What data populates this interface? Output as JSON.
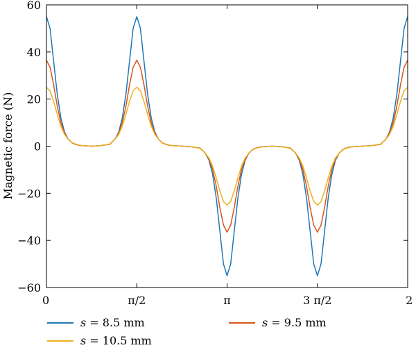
{
  "chart_data": {
    "type": "line",
    "xlabel": "",
    "ylabel": "Magnetic force (N)",
    "xlim": [
      0,
      6.2832
    ],
    "ylim": [
      -60,
      60
    ],
    "grid": false,
    "legend_position": "bottom",
    "x_ticks": [
      {
        "value": 0,
        "label": "0"
      },
      {
        "value": 1.5708,
        "label": "π/2"
      },
      {
        "value": 3.1416,
        "label": "π"
      },
      {
        "value": 4.7124,
        "label": "3 π/2"
      },
      {
        "value": 6.2832,
        "label": "2 π"
      }
    ],
    "y_ticks": [
      {
        "value": 60,
        "label": "60"
      },
      {
        "value": 40,
        "label": "40"
      },
      {
        "value": 20,
        "label": "20"
      },
      {
        "value": 0,
        "label": "0"
      },
      {
        "value": -20,
        "label": "−20"
      },
      {
        "value": -40,
        "label": "−40"
      },
      {
        "value": -60,
        "label": "−60"
      }
    ],
    "x": [
      0,
      0.0628,
      0.1257,
      0.1885,
      0.2513,
      0.3142,
      0.377,
      0.4398,
      0.5027,
      0.5655,
      0.6283,
      0.7854,
      0.9425,
      1.0996,
      1.1938,
      1.2566,
      1.3195,
      1.3823,
      1.4451,
      1.508,
      1.5708,
      1.6336,
      1.6965,
      1.7593,
      1.8221,
      1.885,
      1.9478,
      2.0106,
      2.0735,
      2.1363,
      2.1991,
      2.3562,
      2.5133,
      2.6704,
      2.7646,
      2.8274,
      2.8903,
      2.9531,
      3.0159,
      3.0788,
      3.1416,
      3.2044,
      3.2673,
      3.3301,
      3.3929,
      3.4558,
      3.5186,
      3.5814,
      3.6443,
      3.7071,
      3.7699,
      3.927,
      4.0841,
      4.2412,
      4.3354,
      4.3982,
      4.4611,
      4.5239,
      4.5867,
      4.6496,
      4.7124,
      4.7752,
      4.8381,
      4.9009,
      4.9637,
      5.0265,
      5.0894,
      5.1522,
      5.215,
      5.2779,
      5.3407,
      5.4978,
      5.6549,
      5.8119,
      5.9062,
      5.969,
      6.0319,
      6.0947,
      6.1575,
      6.2204,
      6.2832
    ],
    "series": [
      {
        "name": "s = 8.5 mm",
        "color": "#1f77b4",
        "values": [
          55,
          50,
          36,
          22,
          12,
          6,
          3,
          1.5,
          0.8,
          0.4,
          0.2,
          0,
          0.2,
          0.8,
          3,
          6,
          12,
          22,
          36,
          50,
          55,
          50,
          36,
          22,
          12,
          6,
          3,
          1.5,
          0.8,
          0.4,
          0.2,
          0,
          -0.2,
          -0.8,
          -3,
          -6,
          -12,
          -22,
          -36,
          -50,
          -55,
          -50,
          -36,
          -22,
          -12,
          -6,
          -3,
          -1.5,
          -0.8,
          -0.4,
          -0.2,
          0,
          -0.2,
          -0.8,
          -3,
          -6,
          -12,
          -22,
          -36,
          -50,
          -55,
          -50,
          -36,
          -22,
          -12,
          -6,
          -3,
          -1.5,
          -0.8,
          -0.4,
          -0.2,
          0,
          0.2,
          0.8,
          3,
          6,
          12,
          22,
          36,
          50,
          55
        ]
      },
      {
        "name": "s = 9.5 mm",
        "color": "#d95319",
        "values": [
          36.5,
          33.5,
          26,
          17,
          10,
          5.5,
          3,
          1.5,
          0.8,
          0.4,
          0.2,
          0,
          0.2,
          0.8,
          3,
          5.5,
          10,
          17,
          26,
          33.5,
          36.5,
          33.5,
          26,
          17,
          10,
          5.5,
          3,
          1.5,
          0.8,
          0.4,
          0.2,
          0,
          -0.2,
          -0.8,
          -3,
          -5.5,
          -10,
          -17,
          -26,
          -33.5,
          -36.5,
          -33.5,
          -26,
          -17,
          -10,
          -5.5,
          -3,
          -1.5,
          -0.8,
          -0.4,
          -0.2,
          0,
          -0.2,
          -0.8,
          -3,
          -5.5,
          -10,
          -17,
          -26,
          -33.5,
          -36.5,
          -33.5,
          -26,
          -17,
          -10,
          -5.5,
          -3,
          -1.5,
          -0.8,
          -0.4,
          -0.2,
          0,
          0.2,
          0.8,
          3,
          5.5,
          10,
          17,
          26,
          33.5,
          36.5
        ]
      },
      {
        "name": "s = 10.5 mm",
        "color": "#edb120",
        "values": [
          25,
          23.5,
          19,
          13.5,
          8.5,
          5,
          3,
          1.6,
          0.9,
          0.5,
          0.2,
          0,
          0.2,
          0.9,
          3,
          5,
          8.5,
          13.5,
          19,
          23.5,
          25,
          23.5,
          19,
          13.5,
          8.5,
          5,
          3,
          1.6,
          0.9,
          0.5,
          0.2,
          0,
          -0.2,
          -0.9,
          -3,
          -5,
          -8.5,
          -13.5,
          -19,
          -23.5,
          -25,
          -23.5,
          -19,
          -13.5,
          -8.5,
          -5,
          -3,
          -1.6,
          -0.9,
          -0.5,
          -0.2,
          0,
          -0.2,
          -0.9,
          -3,
          -5,
          -8.5,
          -13.5,
          -19,
          -23.5,
          -25,
          -23.5,
          -19,
          -13.5,
          -8.5,
          -5,
          -3,
          -1.6,
          -0.9,
          -0.5,
          -0.2,
          0,
          0.2,
          0.9,
          3,
          5,
          8.5,
          13.5,
          19,
          23.5,
          25
        ]
      }
    ]
  }
}
